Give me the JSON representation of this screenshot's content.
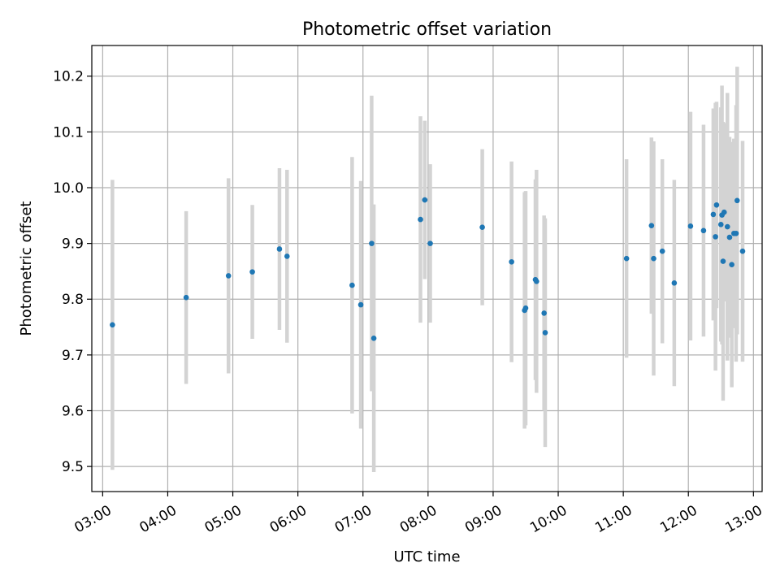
{
  "chart_data": {
    "type": "scatter",
    "title": "Photometric offset variation",
    "xlabel": "UTC time",
    "ylabel": "Photometric offset",
    "grid": true,
    "xlim": [
      "02:50",
      "13:08"
    ],
    "ylim": [
      9.455,
      10.255
    ],
    "x_ticks": [
      "03:00",
      "04:00",
      "05:00",
      "06:00",
      "07:00",
      "08:00",
      "09:00",
      "10:00",
      "11:00",
      "12:00",
      "13:00"
    ],
    "y_ticks": [
      9.5,
      9.6,
      9.7,
      9.8,
      9.9,
      10.0,
      10.1,
      10.2
    ],
    "y_tick_labels": [
      "9.5",
      "9.6",
      "9.7",
      "9.8",
      "9.9",
      "10.0",
      "10.1",
      "10.2"
    ],
    "colors": {
      "point": "#1f77b4",
      "errorbar": "#d3d3d3",
      "grid": "#b0b0b0"
    },
    "series": [
      {
        "x": [
          "03:09",
          "04:17",
          "04:56",
          "05:18",
          "05:43",
          "05:50",
          "06:50",
          "06:58",
          "07:08",
          "07:10",
          "07:53",
          "07:57",
          "08:02",
          "08:50",
          "09:17",
          "09:29",
          "09:30",
          "09:39",
          "09:40",
          "09:47",
          "09:48",
          "11:03",
          "11:26",
          "11:28",
          "11:36",
          "11:47",
          "12:02",
          "12:14",
          "12:23",
          "12:25",
          "12:26",
          "12:30",
          "12:31",
          "12:32",
          "12:33",
          "12:36",
          "12:38",
          "12:40",
          "12:42",
          "12:44",
          "12:45",
          "12:50"
        ],
        "y": [
          9.754,
          9.803,
          9.842,
          9.849,
          9.89,
          9.877,
          9.825,
          9.79,
          9.9,
          9.73,
          9.943,
          9.978,
          9.9,
          9.929,
          9.867,
          9.78,
          9.784,
          9.835,
          9.832,
          9.775,
          9.74,
          9.873,
          9.932,
          9.873,
          9.886,
          9.829,
          9.931,
          9.923,
          9.952,
          9.912,
          9.969,
          9.934,
          9.951,
          9.868,
          9.956,
          9.93,
          9.911,
          9.862,
          9.918,
          9.918,
          9.977,
          9.886
        ],
        "yerr": [
          0.26,
          0.155,
          0.175,
          0.12,
          0.145,
          0.155,
          0.23,
          0.222,
          0.265,
          0.24,
          0.185,
          0.142,
          0.142,
          0.14,
          0.18,
          0.212,
          0.21,
          0.18,
          0.2,
          0.175,
          0.205,
          0.178,
          0.158,
          0.21,
          0.165,
          0.185,
          0.205,
          0.19,
          0.19,
          0.24,
          0.185,
          0.21,
          0.232,
          0.25,
          0.16,
          0.24,
          0.18,
          0.22,
          0.17,
          0.23,
          0.24,
          0.198
        ]
      }
    ]
  }
}
